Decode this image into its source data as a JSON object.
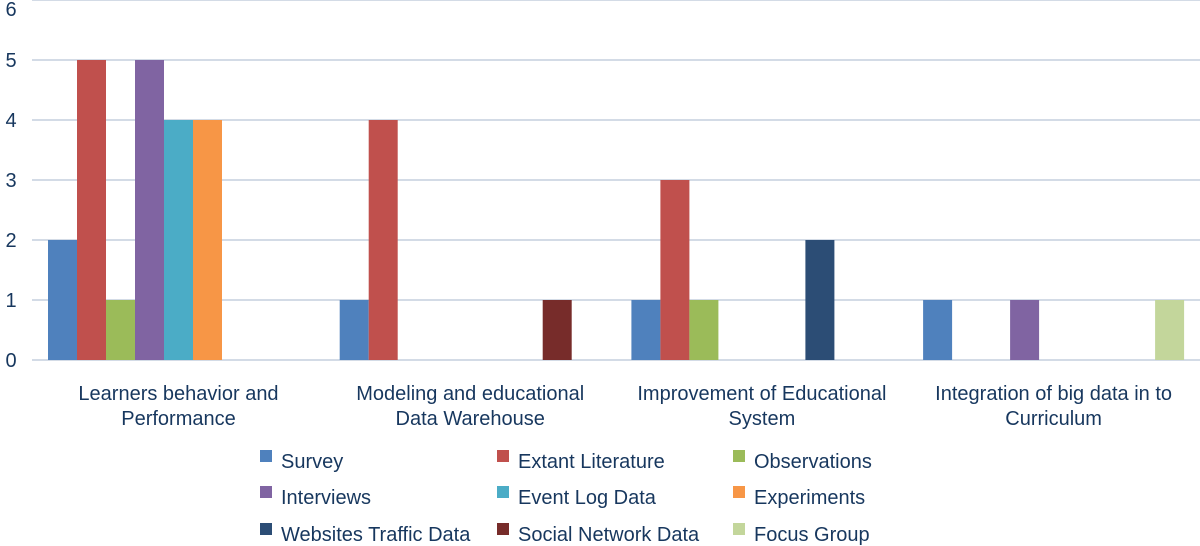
{
  "chart_data": {
    "type": "bar",
    "title": "",
    "xlabel": "",
    "ylabel": "",
    "ylim": [
      0,
      6
    ],
    "yticks": [
      "0",
      "1",
      "2",
      "3",
      "4",
      "5",
      "6"
    ],
    "grid": true,
    "legend_position": "bottom",
    "categories": [
      [
        "Learners behavior and",
        "Performance"
      ],
      [
        "Modeling and educational",
        "Data Warehouse"
      ],
      [
        "Improvement of Educational",
        "System"
      ],
      [
        "Integration of big data in to",
        "Curriculum"
      ]
    ],
    "series": [
      {
        "name": "Survey",
        "color": "#4f81bd",
        "values": [
          2,
          1,
          1,
          1
        ]
      },
      {
        "name": "Extant Literature",
        "color": "#c0504d",
        "values": [
          5,
          4,
          3,
          0
        ]
      },
      {
        "name": "Observations",
        "color": "#9bbb59",
        "values": [
          1,
          0,
          1,
          0
        ]
      },
      {
        "name": "Interviews",
        "color": "#8064a2",
        "values": [
          5,
          0,
          0,
          1
        ]
      },
      {
        "name": "Event Log Data",
        "color": "#4bacc6",
        "values": [
          4,
          0,
          0,
          0
        ]
      },
      {
        "name": "Experiments",
        "color": "#f79646",
        "values": [
          4,
          0,
          0,
          0
        ]
      },
      {
        "name": "Websites Traffic Data",
        "color": "#2c4d75",
        "values": [
          0,
          0,
          2,
          0
        ]
      },
      {
        "name": "Social Network Data",
        "color": "#772c2a",
        "values": [
          0,
          1,
          0,
          0
        ]
      },
      {
        "name": "Focus Group",
        "color": "#c3d69b",
        "values": [
          0,
          0,
          0,
          1
        ]
      }
    ]
  }
}
